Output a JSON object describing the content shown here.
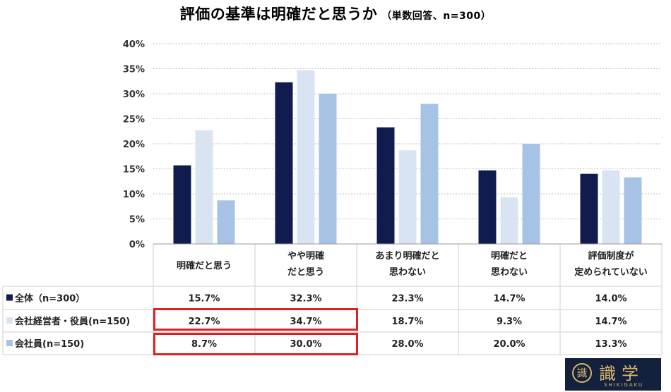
{
  "title": {
    "main": "評価の基準は明確だと思うか",
    "sub": "（単数回答、n=300）"
  },
  "chart_data": {
    "type": "bar",
    "categories": [
      [
        "明確だと思う"
      ],
      [
        "やや明確",
        "だと思う"
      ],
      [
        "あまり明確だと",
        "思わない"
      ],
      [
        "明確だと",
        "思わない"
      ],
      [
        "評価制度が",
        "定められていない"
      ]
    ],
    "series": [
      {
        "name": "全体（n=300）",
        "values": [
          15.7,
          32.3,
          23.3,
          14.7,
          14.0
        ],
        "color": "#0f1c4d",
        "labels": [
          "15.7%",
          "32.3%",
          "23.3%",
          "14.7%",
          "14.0%"
        ]
      },
      {
        "name": "会社経営者・役員(n=150)",
        "values": [
          22.7,
          34.7,
          18.7,
          9.3,
          14.7
        ],
        "color": "#d9e4f2",
        "labels": [
          "22.7%",
          "34.7%",
          "18.7%",
          "9.3%",
          "14.7%"
        ]
      },
      {
        "name": "会社員(n=150)",
        "values": [
          8.7,
          30.0,
          28.0,
          20.0,
          13.3
        ],
        "color": "#a6c3e6",
        "labels": [
          "8.7%",
          "30.0%",
          "28.0%",
          "20.0%",
          "13.3%"
        ]
      }
    ],
    "ylim": [
      0,
      40
    ],
    "yticks": [
      "0%",
      "5%",
      "10%",
      "15%",
      "20%",
      "25%",
      "30%",
      "35%",
      "40%"
    ],
    "grid": true,
    "legend": "data-table-left"
  },
  "logo": {
    "seal": "識",
    "name": "識学",
    "roman": "SHIKIGAKU"
  }
}
